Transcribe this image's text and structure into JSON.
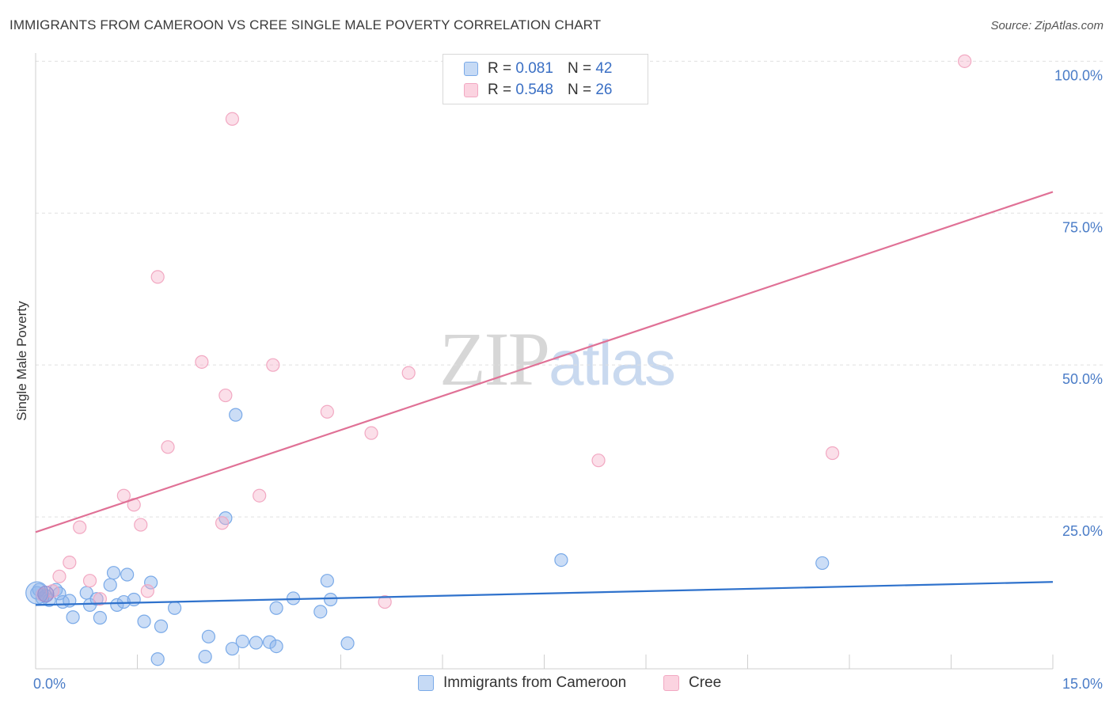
{
  "header": {
    "title": "IMMIGRANTS FROM CAMEROON VS CREE SINGLE MALE POVERTY CORRELATION CHART",
    "source": "Source: ZipAtlas.com"
  },
  "watermark": {
    "zip": "ZIP",
    "atlas": "atlas"
  },
  "legend": {
    "rows": [
      {
        "r_label": "R =",
        "r_value": "0.081",
        "n_label": "N =",
        "n_value": "42"
      },
      {
        "r_label": "R =",
        "r_value": "0.548",
        "n_label": "N =",
        "n_value": "26"
      }
    ]
  },
  "bottom_legend": [
    "Immigrants from Cameroon",
    "Cree"
  ],
  "chart_data": {
    "type": "scatter",
    "title": "IMMIGRANTS FROM CAMEROON VS CREE SINGLE MALE POVERTY CORRELATION CHART",
    "ylabel": "Single Male Poverty",
    "xlabel": "",
    "xlim": [
      0,
      15
    ],
    "ylim": [
      0,
      102
    ],
    "x_tick_labels": [
      {
        "value": 0,
        "label": "0.0%"
      },
      {
        "value": 15,
        "label": "15.0%"
      }
    ],
    "y_tick_labels": [
      {
        "value": 25,
        "label": "25.0%"
      },
      {
        "value": 50,
        "label": "50.0%"
      },
      {
        "value": 75,
        "label": "75.0%"
      },
      {
        "value": 100,
        "label": "100.0%"
      }
    ],
    "grid": true,
    "legend_position": "top-center",
    "series": [
      {
        "name": "Immigrants from Cameroon",
        "color": "#7aaae8",
        "line_color": "#2f72cc",
        "trend": [
          [
            0,
            10.5
          ],
          [
            15,
            14.3
          ]
        ],
        "points": [
          [
            0.02,
            12.5
          ],
          [
            0.1,
            11.6
          ],
          [
            0.2,
            11.3
          ],
          [
            0.3,
            13.0
          ],
          [
            0.35,
            12.4
          ],
          [
            0.4,
            11.0
          ],
          [
            0.5,
            11.2
          ],
          [
            0.55,
            8.5
          ],
          [
            0.75,
            12.5
          ],
          [
            0.8,
            10.5
          ],
          [
            0.9,
            11.5
          ],
          [
            0.95,
            8.4
          ],
          [
            1.1,
            13.8
          ],
          [
            1.15,
            15.8
          ],
          [
            1.2,
            10.5
          ],
          [
            1.3,
            11.0
          ],
          [
            1.35,
            15.5
          ],
          [
            1.45,
            11.4
          ],
          [
            1.6,
            7.8
          ],
          [
            1.7,
            14.2
          ],
          [
            1.8,
            1.6
          ],
          [
            1.85,
            7.0
          ],
          [
            2.05,
            10.0
          ],
          [
            2.5,
            2.0
          ],
          [
            2.55,
            5.3
          ],
          [
            2.8,
            24.8
          ],
          [
            2.95,
            41.8
          ],
          [
            2.9,
            3.3
          ],
          [
            3.05,
            4.5
          ],
          [
            3.25,
            4.3
          ],
          [
            3.45,
            4.4
          ],
          [
            3.55,
            3.7
          ],
          [
            3.55,
            10.0
          ],
          [
            3.8,
            11.6
          ],
          [
            4.2,
            9.4
          ],
          [
            4.3,
            14.5
          ],
          [
            4.35,
            11.4
          ],
          [
            4.6,
            4.2
          ],
          [
            7.75,
            17.9
          ],
          [
            11.6,
            17.4
          ],
          [
            0.15,
            12.0
          ],
          [
            0.05,
            13.0
          ]
        ]
      },
      {
        "name": "Cree",
        "color": "#f2a8c2",
        "line_color": "#e07196",
        "trend": [
          [
            0,
            22.5
          ],
          [
            15,
            78.5
          ]
        ],
        "points": [
          [
            0.35,
            15.2
          ],
          [
            0.5,
            17.5
          ],
          [
            0.65,
            23.3
          ],
          [
            0.8,
            14.5
          ],
          [
            0.95,
            11.5
          ],
          [
            1.3,
            28.5
          ],
          [
            1.45,
            27.0
          ],
          [
            1.55,
            23.7
          ],
          [
            1.65,
            12.8
          ],
          [
            1.8,
            64.5
          ],
          [
            1.95,
            36.5
          ],
          [
            2.45,
            50.5
          ],
          [
            2.75,
            24.0
          ],
          [
            2.8,
            45.0
          ],
          [
            2.9,
            90.5
          ],
          [
            3.3,
            28.5
          ],
          [
            3.5,
            50.0
          ],
          [
            4.3,
            42.3
          ],
          [
            4.95,
            38.8
          ],
          [
            5.15,
            11.0
          ],
          [
            5.5,
            48.7
          ],
          [
            8.3,
            34.3
          ],
          [
            11.75,
            35.5
          ],
          [
            13.7,
            100.0
          ],
          [
            0.1,
            12.2
          ],
          [
            0.25,
            12.8
          ]
        ]
      }
    ]
  }
}
